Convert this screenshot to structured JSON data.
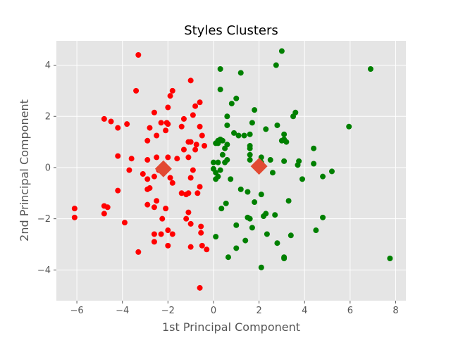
{
  "chart_data": {
    "type": "scatter",
    "title": "Styles Clusters",
    "xlabel": "1st Principal Component",
    "ylabel": "2nd Principal Component",
    "xlim": [
      -6.9,
      8.45
    ],
    "ylim": [
      -5.2,
      4.95
    ],
    "xticks": [
      -6,
      -4,
      -2,
      0,
      2,
      4,
      6,
      8
    ],
    "yticks": [
      -4,
      -2,
      0,
      2,
      4
    ],
    "grid": true,
    "background": "#e5e5e5",
    "grid_color": "#ffffff",
    "series": [
      {
        "color": "#ff0000",
        "points": [
          [
            -3.3,
            4.4
          ],
          [
            -3.4,
            3.0
          ],
          [
            -1.0,
            3.4
          ],
          [
            -1.8,
            3.0
          ],
          [
            -1.9,
            2.8
          ],
          [
            -2.6,
            2.15
          ],
          [
            -2.0,
            2.35
          ],
          [
            -0.6,
            2.55
          ],
          [
            -0.8,
            2.4
          ],
          [
            -4.8,
            1.9
          ],
          [
            -4.5,
            1.8
          ],
          [
            -3.8,
            1.7
          ],
          [
            -4.2,
            1.55
          ],
          [
            -2.8,
            1.55
          ],
          [
            -1.3,
            1.9
          ],
          [
            -2.0,
            1.7
          ],
          [
            -2.05,
            1.75
          ],
          [
            -0.9,
            2.05
          ],
          [
            -0.6,
            1.6
          ],
          [
            -1.4,
            1.6
          ],
          [
            -2.1,
            1.45
          ],
          [
            -2.5,
            1.25
          ],
          [
            -2.9,
            1.05
          ],
          [
            -1.0,
            1.0
          ],
          [
            -1.1,
            1.0
          ],
          [
            -0.5,
            1.25
          ],
          [
            -0.75,
            0.9
          ],
          [
            -0.4,
            0.85
          ],
          [
            -0.8,
            0.7
          ],
          [
            -1.3,
            0.7
          ],
          [
            -2.0,
            0.4
          ],
          [
            -2.5,
            0.4
          ],
          [
            -1.6,
            0.35
          ],
          [
            -2.9,
            0.3
          ],
          [
            -1.1,
            0.4
          ],
          [
            -4.2,
            0.45
          ],
          [
            -3.6,
            0.35
          ],
          [
            -2.4,
            -0.1
          ],
          [
            -3.7,
            -0.1
          ],
          [
            -3.1,
            -0.25
          ],
          [
            -0.9,
            -0.1
          ],
          [
            -1.0,
            -0.4
          ],
          [
            -1.9,
            -0.4
          ],
          [
            -2.6,
            -0.35
          ],
          [
            -2.9,
            -0.45
          ],
          [
            -1.8,
            -0.6
          ],
          [
            -0.6,
            -0.75
          ],
          [
            -2.8,
            -0.8
          ],
          [
            -2.9,
            -0.85
          ],
          [
            -4.2,
            -0.9
          ],
          [
            -1.4,
            -1.0
          ],
          [
            -1.1,
            -1.0
          ],
          [
            -1.2,
            -1.05
          ],
          [
            -0.7,
            -1.0
          ],
          [
            -2.5,
            -1.3
          ],
          [
            -2.9,
            -1.45
          ],
          [
            -2.6,
            -1.55
          ],
          [
            -2.1,
            -1.6
          ],
          [
            -1.1,
            -1.75
          ],
          [
            -6.1,
            -1.6
          ],
          [
            -4.8,
            -1.5
          ],
          [
            -4.65,
            -1.55
          ],
          [
            -4.8,
            -1.8
          ],
          [
            -1.2,
            -2.0
          ],
          [
            -2.25,
            -2.0
          ],
          [
            -6.1,
            -1.95
          ],
          [
            -3.9,
            -2.15
          ],
          [
            -1.0,
            -2.2
          ],
          [
            -0.55,
            -2.3
          ],
          [
            -2.0,
            -2.45
          ],
          [
            -2.3,
            -2.6
          ],
          [
            -1.8,
            -2.6
          ],
          [
            -2.6,
            -2.6
          ],
          [
            -0.55,
            -2.55
          ],
          [
            -2.6,
            -2.9
          ],
          [
            -2.0,
            -3.05
          ],
          [
            -1.0,
            -3.1
          ],
          [
            -0.5,
            -3.05
          ],
          [
            -0.3,
            -3.2
          ],
          [
            -3.3,
            -3.3
          ],
          [
            -0.6,
            -4.7
          ],
          [
            -2.3,
            1.75
          ],
          [
            -2.15,
            -0.05
          ]
        ]
      },
      {
        "color": "#008000",
        "points": [
          [
            3.0,
            4.55
          ],
          [
            2.75,
            4.0
          ],
          [
            0.3,
            3.85
          ],
          [
            1.2,
            3.7
          ],
          [
            6.9,
            3.85
          ],
          [
            0.3,
            3.05
          ],
          [
            1.0,
            2.7
          ],
          [
            0.8,
            2.5
          ],
          [
            1.8,
            2.25
          ],
          [
            3.6,
            2.15
          ],
          [
            3.5,
            2.0
          ],
          [
            0.6,
            2.0
          ],
          [
            5.95,
            1.6
          ],
          [
            1.7,
            1.75
          ],
          [
            2.8,
            1.65
          ],
          [
            0.6,
            1.65
          ],
          [
            2.3,
            1.5
          ],
          [
            0.9,
            1.35
          ],
          [
            1.1,
            1.25
          ],
          [
            1.35,
            1.25
          ],
          [
            1.6,
            1.3
          ],
          [
            3.1,
            1.3
          ],
          [
            3.0,
            1.05
          ],
          [
            3.1,
            1.1
          ],
          [
            3.2,
            1.0
          ],
          [
            0.2,
            1.05
          ],
          [
            0.3,
            1.1
          ],
          [
            0.4,
            1.05
          ],
          [
            0.6,
            0.9
          ],
          [
            0.5,
            0.75
          ],
          [
            1.6,
            0.85
          ],
          [
            1.6,
            0.75
          ],
          [
            3.75,
            0.25
          ],
          [
            4.4,
            0.75
          ],
          [
            4.4,
            0.15
          ],
          [
            2.5,
            0.3
          ],
          [
            3.1,
            0.25
          ],
          [
            3.7,
            0.1
          ],
          [
            0.1,
            0.95
          ],
          [
            0.2,
            0.95
          ],
          [
            0.4,
            0.5
          ],
          [
            0.6,
            0.3
          ],
          [
            0.0,
            0.2
          ],
          [
            0.2,
            0.2
          ],
          [
            0.5,
            0.2
          ],
          [
            1.6,
            0.5
          ],
          [
            1.6,
            0.3
          ],
          [
            2.1,
            0.4
          ],
          [
            2.1,
            0.2
          ],
          [
            0.0,
            -0.05
          ],
          [
            0.1,
            -0.2
          ],
          [
            0.3,
            -0.1
          ],
          [
            0.2,
            -0.35
          ],
          [
            0.1,
            -0.45
          ],
          [
            2.6,
            -0.2
          ],
          [
            0.75,
            -0.45
          ],
          [
            3.9,
            -0.45
          ],
          [
            4.8,
            -0.35
          ],
          [
            5.2,
            -0.15
          ],
          [
            1.2,
            -0.85
          ],
          [
            1.5,
            -0.95
          ],
          [
            2.1,
            -1.05
          ],
          [
            3.3,
            -1.3
          ],
          [
            0.55,
            -1.4
          ],
          [
            0.35,
            -1.6
          ],
          [
            1.8,
            -1.35
          ],
          [
            2.3,
            -1.8
          ],
          [
            2.2,
            -1.9
          ],
          [
            2.7,
            -1.85
          ],
          [
            1.5,
            -1.95
          ],
          [
            1.6,
            -2.0
          ],
          [
            4.8,
            -1.95
          ],
          [
            1.0,
            -2.25
          ],
          [
            1.7,
            -2.35
          ],
          [
            4.5,
            -2.45
          ],
          [
            2.35,
            -2.6
          ],
          [
            3.4,
            -2.65
          ],
          [
            0.1,
            -2.7
          ],
          [
            1.4,
            -2.85
          ],
          [
            2.8,
            -2.95
          ],
          [
            1.0,
            -3.15
          ],
          [
            0.65,
            -3.5
          ],
          [
            3.1,
            -3.5
          ],
          [
            3.1,
            -3.55
          ],
          [
            7.75,
            -3.55
          ],
          [
            2.1,
            -3.9
          ]
        ]
      }
    ],
    "centroids": {
      "color": "#e24a33",
      "points": [
        [
          -2.2,
          -0.05
        ],
        [
          2.0,
          0.05
        ]
      ]
    }
  }
}
